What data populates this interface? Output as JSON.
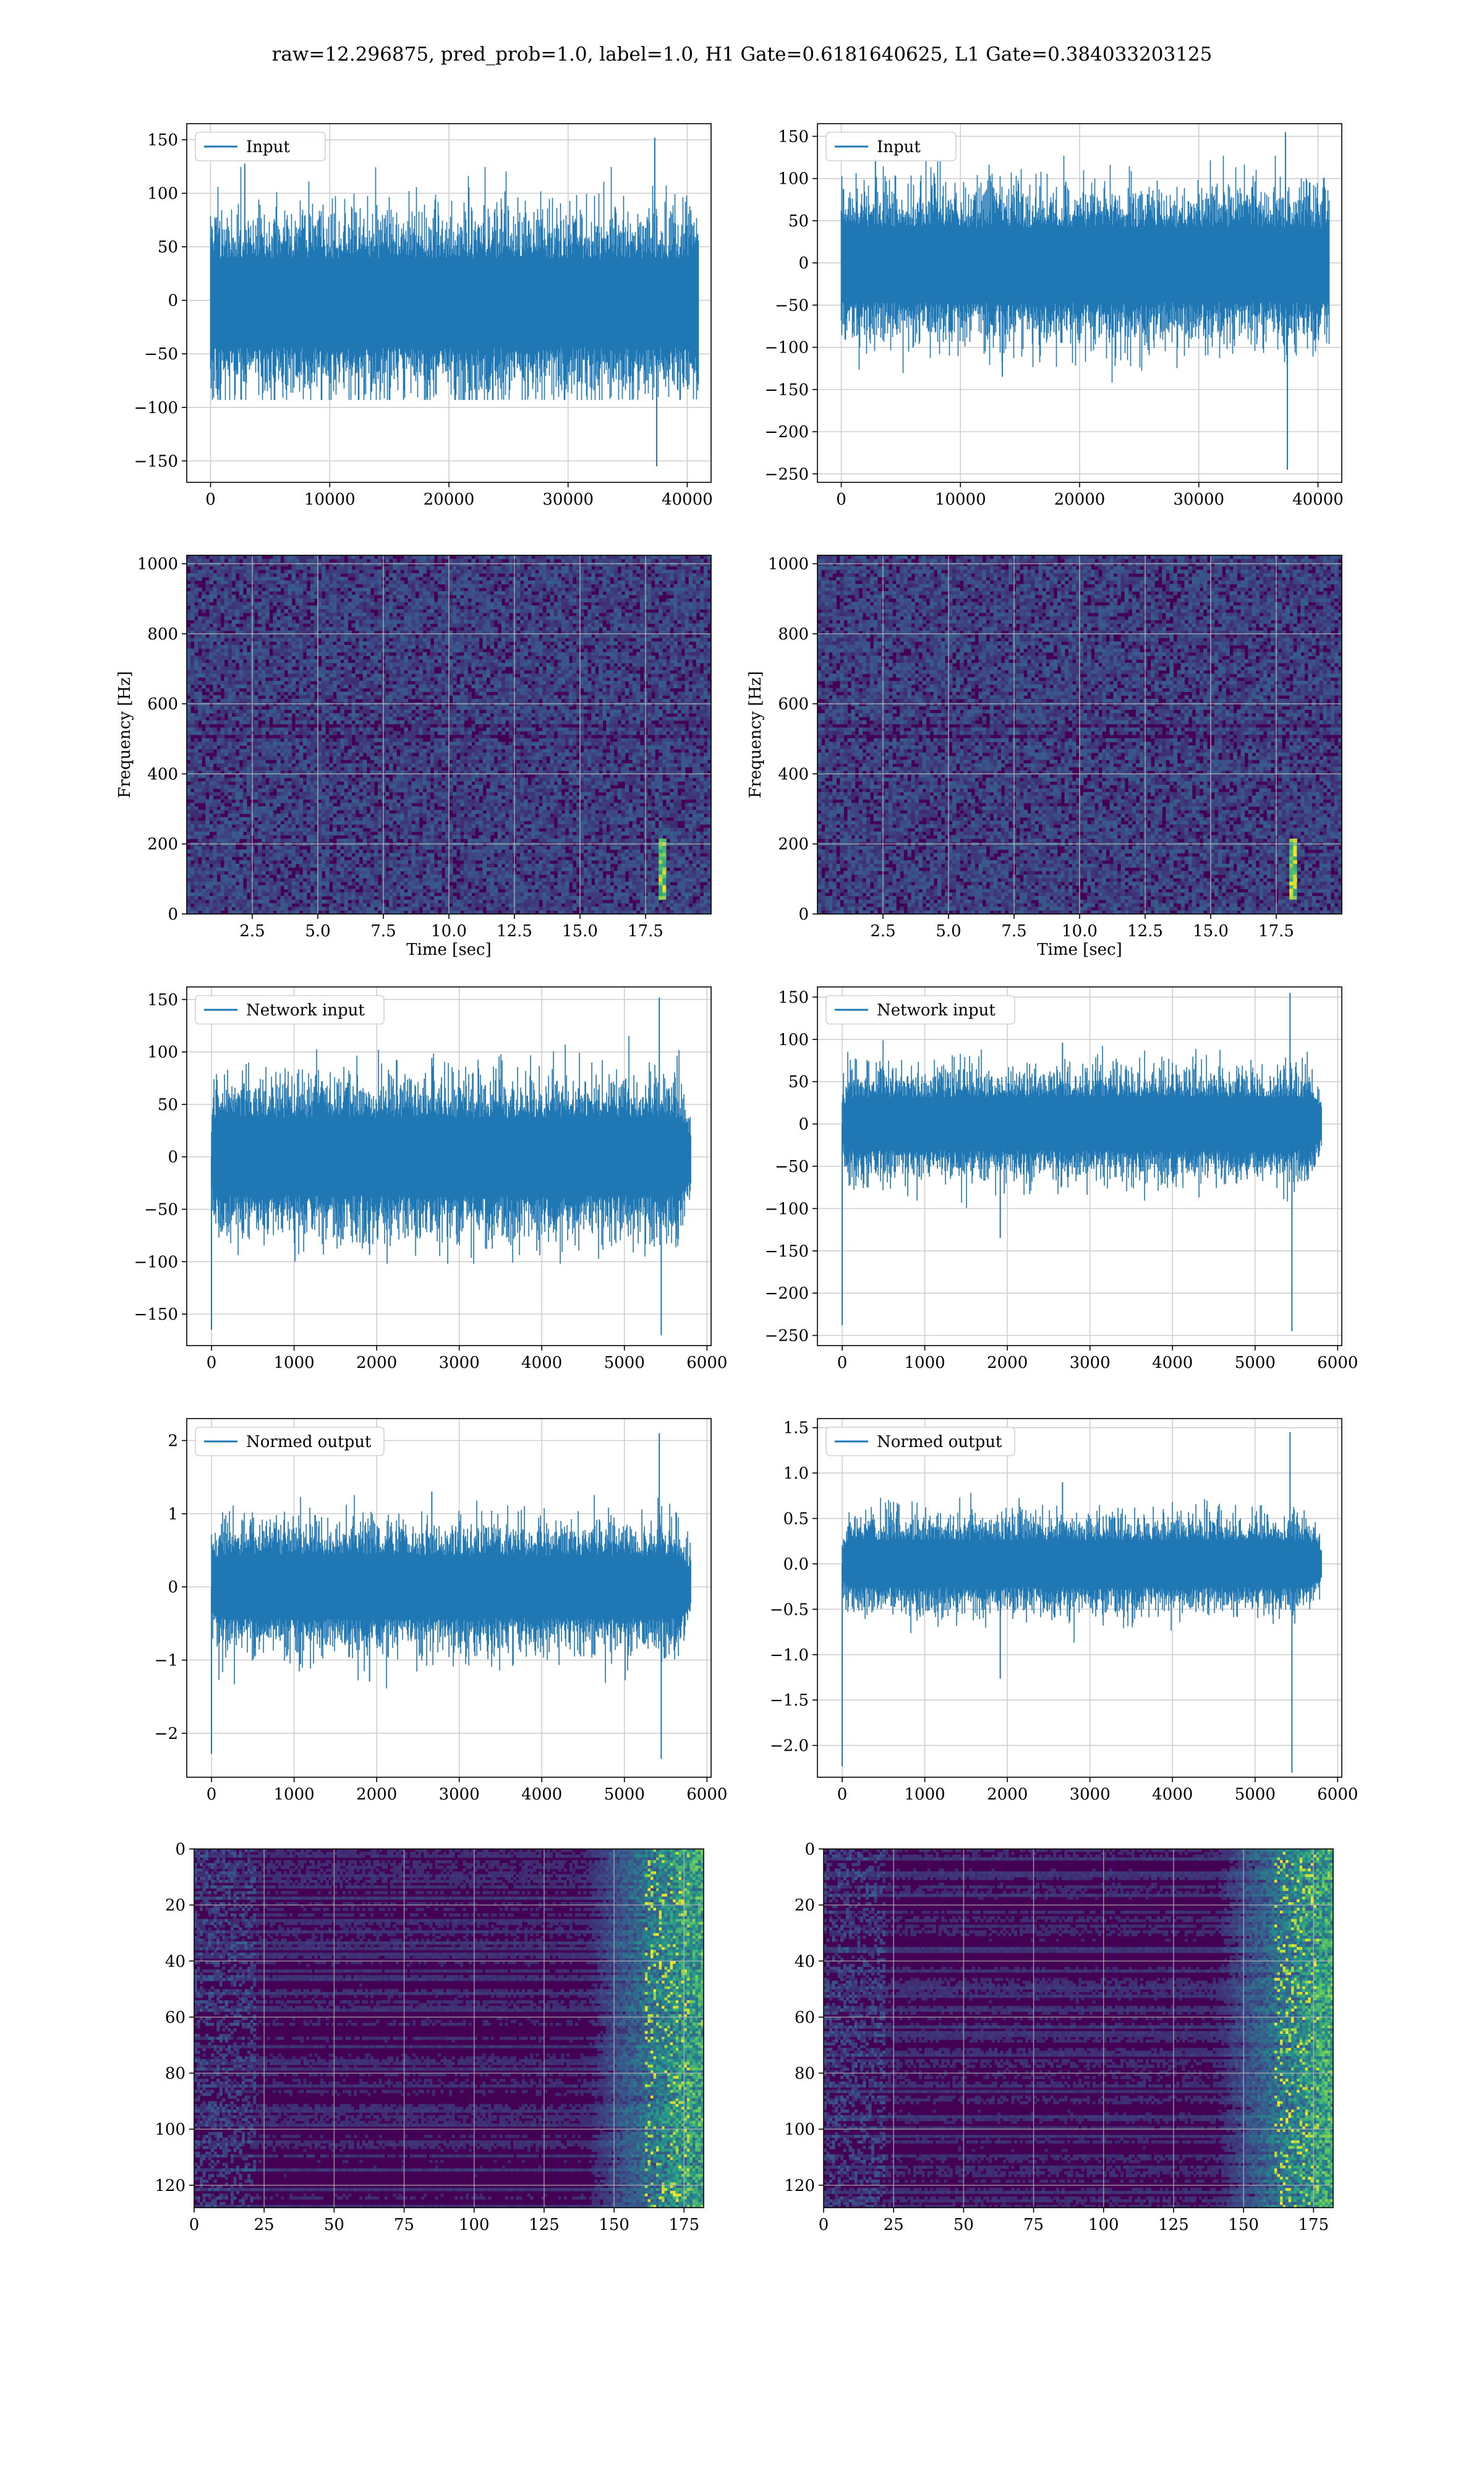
{
  "figure": {
    "suptitle": "raw=12.296875, pred_prob=1.0, label=1.0, H1 Gate=0.6181640625, L1 Gate=0.384033203125"
  },
  "colors": {
    "line": "#1f77b4",
    "grid": "#cfcfcf",
    "heat_low": "#440154",
    "heat_mid": "#21918c",
    "heat_high": "#fde725"
  },
  "chart_data": [
    {
      "type": "line",
      "id": "input-h1",
      "legend": "Input",
      "xlim": [
        -2000,
        42000
      ],
      "ylim": [
        -170,
        165
      ],
      "xticks": [
        0,
        10000,
        20000,
        30000,
        40000
      ],
      "yticks": [
        150,
        100,
        50,
        0,
        -50,
        -100,
        -150
      ],
      "n_points": 40960,
      "band_typical": [
        -75,
        70
      ],
      "band_peak": [
        -155,
        152
      ],
      "grid": true,
      "legend_position": "upper left"
    },
    {
      "type": "line",
      "id": "input-l1",
      "legend": "Input",
      "xlim": [
        -2000,
        42000
      ],
      "ylim": [
        -260,
        165
      ],
      "xticks": [
        0,
        10000,
        20000,
        30000,
        40000
      ],
      "yticks": [
        150,
        100,
        50,
        0,
        -50,
        -100,
        -150,
        -200,
        -250
      ],
      "n_points": 40960,
      "band_typical": [
        -80,
        75
      ],
      "band_peak": [
        -245,
        155
      ],
      "grid": true,
      "legend_position": "upper left"
    },
    {
      "type": "heatmap",
      "id": "spec-h1",
      "xlabel": "Time [sec]",
      "ylabel": "Frequency [Hz]",
      "xlim": [
        0,
        20
      ],
      "ylim": [
        0,
        1024
      ],
      "xticks": [
        "2.5",
        "5.0",
        "7.5",
        "10.0",
        "12.5",
        "15.0",
        "17.5"
      ],
      "yticks": [
        "0",
        "200",
        "400",
        "600",
        "800",
        "1000"
      ],
      "event_time": 18.1,
      "event_freq_range": [
        40,
        220
      ],
      "grid": true
    },
    {
      "type": "heatmap",
      "id": "spec-l1",
      "xlabel": "Time [sec]",
      "ylabel": "Frequency [Hz]",
      "xlim": [
        0,
        20
      ],
      "ylim": [
        0,
        1024
      ],
      "xticks": [
        "2.5",
        "5.0",
        "7.5",
        "10.0",
        "12.5",
        "15.0",
        "17.5"
      ],
      "yticks": [
        "0",
        "200",
        "400",
        "600",
        "800",
        "1000"
      ],
      "event_time": 18.1,
      "event_freq_range": [
        40,
        220
      ],
      "grid": true
    },
    {
      "type": "line",
      "id": "netinput-h1",
      "legend": "Network input",
      "xlim": [
        -300,
        6050
      ],
      "ylim": [
        -180,
        162
      ],
      "xticks": [
        0,
        1000,
        2000,
        3000,
        4000,
        5000,
        6000
      ],
      "yticks": [
        150,
        100,
        50,
        0,
        -50,
        -100,
        -150
      ],
      "n_points": 5800,
      "band_typical": [
        -65,
        65
      ],
      "band_peak": [
        -170,
        152
      ],
      "grid": true,
      "legend_position": "upper left"
    },
    {
      "type": "line",
      "id": "netinput-l1",
      "legend": "Network input",
      "xlim": [
        -300,
        6050
      ],
      "ylim": [
        -262,
        162
      ],
      "xticks": [
        0,
        1000,
        2000,
        3000,
        4000,
        5000,
        6000
      ],
      "yticks": [
        150,
        100,
        50,
        0,
        -50,
        -100,
        -150,
        -200,
        -250
      ],
      "n_points": 5800,
      "band_typical": [
        -55,
        55
      ],
      "band_peak": [
        -245,
        155
      ],
      "grid": true,
      "legend_position": "upper left"
    },
    {
      "type": "line",
      "id": "normed-h1",
      "legend": "Normed output",
      "xlim": [
        -300,
        6050
      ],
      "ylim": [
        -2.6,
        2.3
      ],
      "xticks": [
        0,
        1000,
        2000,
        3000,
        4000,
        5000,
        6000
      ],
      "yticks": [
        2,
        1,
        0,
        -1,
        -2
      ],
      "n_points": 5800,
      "band_typical": [
        -0.75,
        0.75
      ],
      "band_peak": [
        -2.35,
        2.1
      ],
      "grid": true,
      "legend_position": "upper left"
    },
    {
      "type": "line",
      "id": "normed-l1",
      "legend": "Normed output",
      "xlim": [
        -300,
        6050
      ],
      "ylim": [
        -2.35,
        1.6
      ],
      "xticks": [
        0,
        1000,
        2000,
        3000,
        4000,
        5000,
        6000
      ],
      "yticks": [
        "1.5",
        "1.0",
        "0.5",
        "0.0",
        "−0.5",
        "−1.0",
        "−1.5",
        "−2.0"
      ],
      "yticks_num": [
        1.5,
        1.0,
        0.5,
        0.0,
        -0.5,
        -1.0,
        -1.5,
        -2.0
      ],
      "n_points": 5800,
      "band_typical": [
        -0.45,
        0.45
      ],
      "band_peak": [
        -2.3,
        1.45
      ],
      "grid": true,
      "legend_position": "upper left"
    },
    {
      "type": "heatmap",
      "id": "feat-h1",
      "xlim": [
        0,
        182
      ],
      "ylim": [
        0,
        128
      ],
      "y_inverted": true,
      "xticks": [
        0,
        25,
        50,
        75,
        100,
        125,
        150,
        175
      ],
      "yticks": [
        0,
        20,
        40,
        60,
        80,
        100,
        120
      ],
      "rows": 128,
      "cols": 182,
      "hot_start_col": 140,
      "grid": true
    },
    {
      "type": "heatmap",
      "id": "feat-l1",
      "xlim": [
        0,
        182
      ],
      "ylim": [
        0,
        128
      ],
      "y_inverted": true,
      "xticks": [
        0,
        25,
        50,
        75,
        100,
        125,
        150,
        175
      ],
      "yticks": [
        0,
        20,
        40,
        60,
        80,
        100,
        120
      ],
      "rows": 128,
      "cols": 182,
      "hot_start_col": 140,
      "grid": true
    }
  ]
}
